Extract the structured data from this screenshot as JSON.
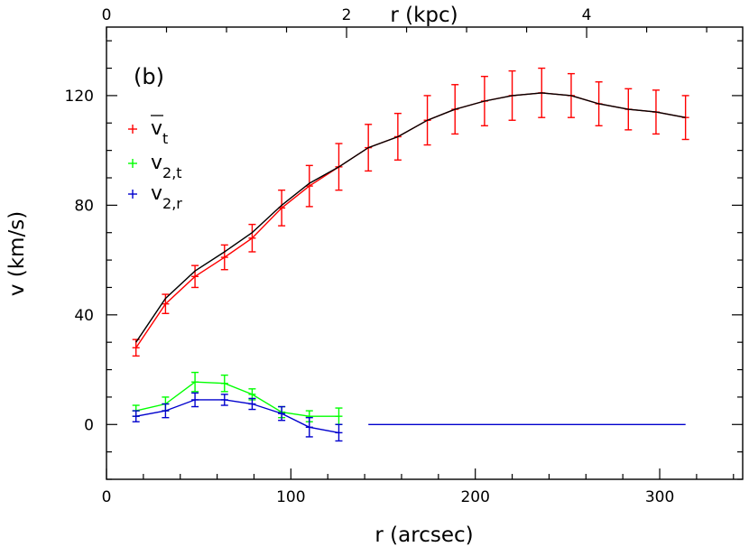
{
  "chart_data": {
    "type": "line",
    "panel_label": "(b)",
    "xlabel": "r (arcsec)",
    "ylabel": "v (km/s)",
    "x2label": "r (kpc)",
    "xlim": [
      0,
      345
    ],
    "ylim": [
      -20,
      145
    ],
    "x2lim": [
      0,
      5.3
    ],
    "xticks": [
      0,
      100,
      200,
      300
    ],
    "yticks": [
      0,
      40,
      80,
      120
    ],
    "x2ticks": [
      0,
      2,
      4
    ],
    "legend": {
      "position": "top-left",
      "entries": [
        {
          "series": "vt_mean",
          "main": "v",
          "sub": "t",
          "overbar": true
        },
        {
          "series": "v2t",
          "main": "v",
          "sub": "2,t",
          "overbar": false
        },
        {
          "series": "v2r",
          "main": "v",
          "sub": "2,r",
          "overbar": false
        }
      ]
    },
    "series": [
      {
        "key": "vt_mean",
        "color": "#ff0000",
        "x": [
          16,
          32,
          48,
          64,
          79,
          95,
          110,
          126,
          142,
          158,
          174,
          189,
          205,
          220,
          236,
          252,
          267,
          283,
          298,
          314
        ],
        "y": [
          28,
          44,
          54,
          61,
          68,
          79,
          87,
          94,
          101,
          105,
          111,
          115,
          118,
          120,
          121,
          120,
          117,
          115,
          114,
          112
        ],
        "err": [
          3,
          3.5,
          4,
          4.5,
          5,
          6.5,
          7.5,
          8.5,
          8.5,
          8.5,
          9,
          9,
          9,
          9,
          9,
          8,
          8,
          7.5,
          8,
          8
        ]
      },
      {
        "key": "model",
        "color": "#000000",
        "x": [
          16,
          32,
          48,
          64,
          79,
          95,
          110,
          126,
          142,
          158,
          174,
          189,
          205,
          220,
          236,
          252,
          267,
          283,
          298,
          314
        ],
        "y": [
          30,
          46,
          56,
          63,
          70,
          80,
          88,
          94,
          101,
          105,
          111,
          115,
          118,
          120,
          121,
          120,
          117,
          115,
          114,
          112
        ]
      },
      {
        "key": "v2t",
        "color": "#00ff00",
        "x": [
          16,
          32,
          48,
          64,
          79,
          95,
          110,
          126
        ],
        "y": [
          5,
          7.5,
          15.5,
          15,
          11,
          4.5,
          3,
          3
        ],
        "err": [
          2,
          2.5,
          3.5,
          3,
          2,
          2,
          2,
          3
        ]
      },
      {
        "key": "v2r",
        "color": "#0000cd",
        "x": [
          16,
          32,
          48,
          64,
          79,
          95,
          110,
          126
        ],
        "y": [
          3,
          5,
          9,
          9,
          7.5,
          4,
          -1,
          -3
        ],
        "err": [
          2,
          2.5,
          2.5,
          2,
          2,
          2.5,
          3.5,
          3
        ]
      },
      {
        "key": "zero_line",
        "color": "#0000cd",
        "x": [
          142,
          314
        ],
        "y": [
          0,
          0
        ]
      }
    ]
  }
}
